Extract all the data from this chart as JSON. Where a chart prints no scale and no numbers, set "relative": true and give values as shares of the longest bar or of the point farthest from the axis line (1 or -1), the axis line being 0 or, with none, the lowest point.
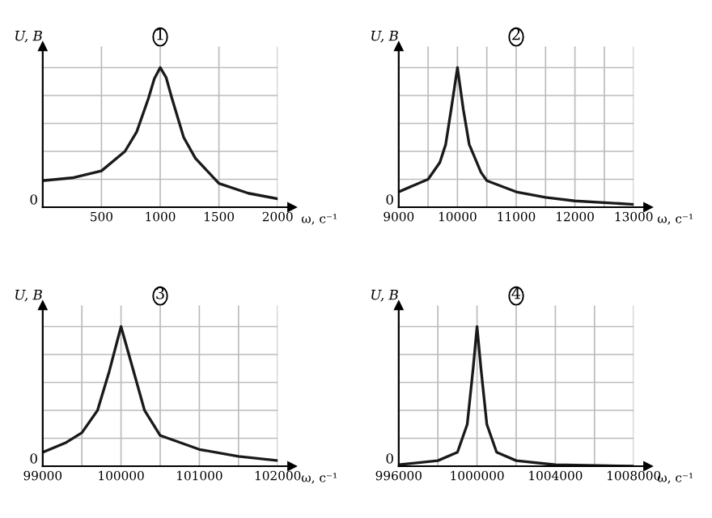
{
  "chart_data": [
    {
      "type": "line",
      "title": "1",
      "xlabel": "ω, c⁻¹",
      "ylabel": "U, B",
      "relative": true,
      "grid": true,
      "annotations": [
        "0"
      ],
      "xlim": [
        0,
        2000
      ],
      "xticks": [
        500,
        1000,
        1500,
        2000
      ],
      "series": [
        {
          "color": "#1a1a1a",
          "x": [
            0,
            250,
            500,
            700,
            800,
            900,
            950,
            1000,
            1050,
            1100,
            1200,
            1300,
            1500,
            1750,
            2000
          ],
          "values": [
            0.19,
            0.21,
            0.26,
            0.4,
            0.54,
            0.78,
            0.92,
            1,
            0.93,
            0.78,
            0.5,
            0.35,
            0.17,
            0.1,
            0.06
          ]
        }
      ]
    },
    {
      "type": "line",
      "title": "2",
      "xlabel": "ω, c⁻¹",
      "ylabel": "U, B",
      "relative": true,
      "grid": true,
      "annotations": [
        "0"
      ],
      "xlim": [
        9000,
        13000
      ],
      "xticks": [
        9000,
        {
          "value": 9500,
          "label": null
        },
        10000,
        {
          "value": 10500,
          "label": null
        },
        11000,
        {
          "value": 11500,
          "label": null
        },
        12000,
        {
          "value": 12500,
          "label": null
        },
        13000
      ],
      "series": [
        {
          "color": "#1a1a1a",
          "x": [
            9000,
            9500,
            9700,
            9800,
            9900,
            10000,
            10100,
            10200,
            10400,
            10500,
            11000,
            11500,
            12000,
            13000
          ],
          "values": [
            0.11,
            0.2,
            0.32,
            0.45,
            0.72,
            1,
            0.7,
            0.45,
            0.25,
            0.19,
            0.11,
            0.07,
            0.045,
            0.02
          ]
        }
      ]
    },
    {
      "type": "line",
      "title": "3",
      "xlabel": "ω, c⁻¹",
      "ylabel": "U, B",
      "relative": true,
      "grid": true,
      "annotations": [
        "0"
      ],
      "xlim": [
        99000,
        102000
      ],
      "xticks": [
        99000,
        {
          "value": 99500,
          "label": null
        },
        100000,
        {
          "value": 100500,
          "label": null
        },
        101000,
        {
          "value": 101500,
          "label": null
        },
        102000
      ],
      "series": [
        {
          "color": "#1a1a1a",
          "x": [
            99000,
            99300,
            99500,
            99700,
            99850,
            100000,
            100150,
            100300,
            100500,
            101000,
            101500,
            102000
          ],
          "values": [
            0.1,
            0.17,
            0.24,
            0.4,
            0.68,
            1,
            0.7,
            0.4,
            0.22,
            0.12,
            0.07,
            0.04
          ]
        }
      ]
    },
    {
      "type": "line",
      "title": "4",
      "xlabel": "ω, c⁻¹",
      "ylabel": "U, B",
      "relative": true,
      "grid": true,
      "annotations": [
        "0"
      ],
      "xlim": [
        996000,
        1008000
      ],
      "xticks": [
        {
          "value": 996000,
          "label": "996000"
        },
        {
          "value": 998000,
          "label": null
        },
        1000000,
        {
          "value": 1002000,
          "label": null
        },
        1004000,
        {
          "value": 1006000,
          "label": null
        },
        1008000
      ],
      "series": [
        {
          "color": "#1a1a1a",
          "x": [
            996000,
            998000,
            999000,
            999500,
            999800,
            1000000,
            1000200,
            1000500,
            1001000,
            1002000,
            1004000,
            1008000
          ],
          "values": [
            0.01,
            0.04,
            0.1,
            0.3,
            0.7,
            1,
            0.7,
            0.3,
            0.1,
            0.04,
            0.01,
            0.0
          ]
        }
      ]
    }
  ]
}
